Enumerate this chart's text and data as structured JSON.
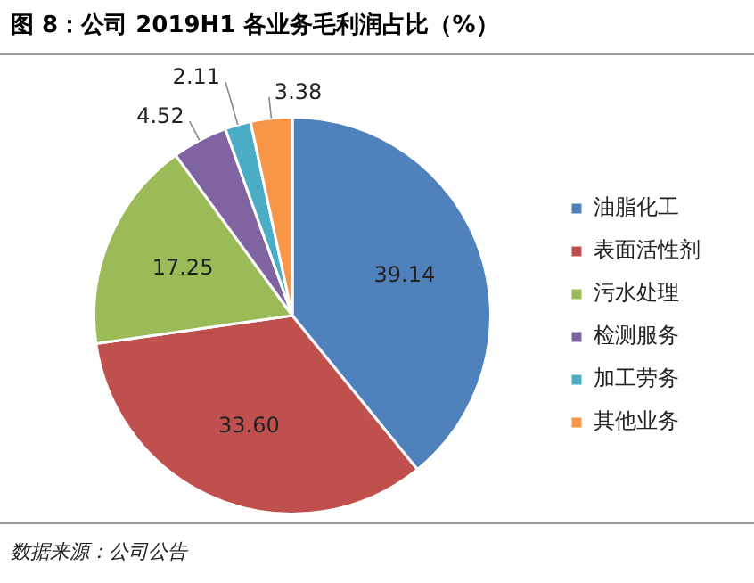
{
  "chart_data": {
    "type": "pie",
    "title": "图 8：公司 2019H1 各业务毛利润占比（%）",
    "categories": [
      "油脂化工",
      "表面活性剂",
      "污水处理",
      "检测服务",
      "加工劳务",
      "其他业务"
    ],
    "values": [
      39.14,
      33.6,
      17.25,
      4.52,
      2.11,
      3.38
    ],
    "value_labels": [
      "39.14",
      "33.60",
      "17.25",
      "4.52",
      "2.11",
      "3.38"
    ],
    "colors": [
      "#4f81bd",
      "#c0504d",
      "#9bbb59",
      "#8064a2",
      "#4bacc6",
      "#f79646"
    ],
    "legend": "right",
    "annotations": [
      "数据来源：公司公告"
    ]
  }
}
